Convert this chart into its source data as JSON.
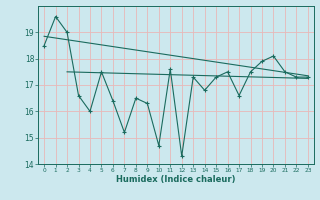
{
  "x": [
    0,
    1,
    2,
    3,
    4,
    5,
    6,
    7,
    8,
    9,
    10,
    11,
    12,
    13,
    14,
    15,
    16,
    17,
    18,
    19,
    20,
    21,
    22,
    23
  ],
  "y_main": [
    18.5,
    19.6,
    19.0,
    16.6,
    16.0,
    17.5,
    16.4,
    15.2,
    16.5,
    16.3,
    14.7,
    17.6,
    14.3,
    17.3,
    16.8,
    17.3,
    17.5,
    16.6,
    17.5,
    17.9,
    18.1,
    17.5,
    17.3,
    17.3
  ],
  "trend1_x": [
    0,
    23
  ],
  "trend1_y": [
    18.85,
    17.35
  ],
  "trend2_x": [
    2,
    23
  ],
  "trend2_y": [
    17.5,
    17.25
  ],
  "line_color": "#1a6b5e",
  "bg_color": "#cce8ee",
  "grid_color": "#e8b8b8",
  "xlabel": "Humidex (Indice chaleur)",
  "ylim": [
    14,
    20
  ],
  "xlim": [
    -0.5,
    23.5
  ],
  "yticks": [
    14,
    15,
    16,
    17,
    18,
    19
  ],
  "xticks": [
    0,
    1,
    2,
    3,
    4,
    5,
    6,
    7,
    8,
    9,
    10,
    11,
    12,
    13,
    14,
    15,
    16,
    17,
    18,
    19,
    20,
    21,
    22,
    23
  ]
}
